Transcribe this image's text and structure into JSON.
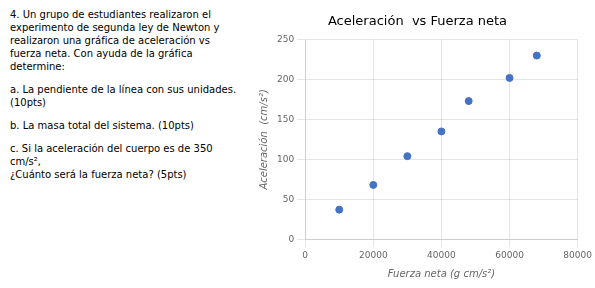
{
  "chart_data": {
    "type": "scatter",
    "title": "Aceleración  vs Fuerza neta",
    "x_label": "Fuerza neta (g cm/s²)",
    "y_label": "Aceleración  (cm/s²)",
    "x": [
      10000,
      20000,
      30000,
      40000,
      48000,
      60000,
      68000
    ],
    "values": [
      37,
      68,
      104,
      135,
      173,
      202,
      230
    ],
    "color": "#4472c4",
    "xlim": [
      0,
      80000
    ],
    "ylim": [
      0,
      250
    ],
    "xticks": [
      0,
      20000,
      40000,
      60000,
      80000
    ],
    "yticks": [
      0,
      50,
      100,
      150,
      200,
      250
    ],
    "grid": true,
    "annotations": [
      "4. Un grupo de estudiantes realizaron el experimento de segunda ley de Newton y realizaron una gráfica de",
      "aceleración vs fuerza neta",
      ". Con ayuda de la gráfica determine:",
      "a. La pendiente de la línea con sus unidades. (10pts)",
      "b. La masa total del sistema. (10pts)",
      "c. Si la aceleración del cuerpo es de 350 cm/s²,",
      "¿Cuánto será la fuerza neta? (5pts)"
    ]
  }
}
